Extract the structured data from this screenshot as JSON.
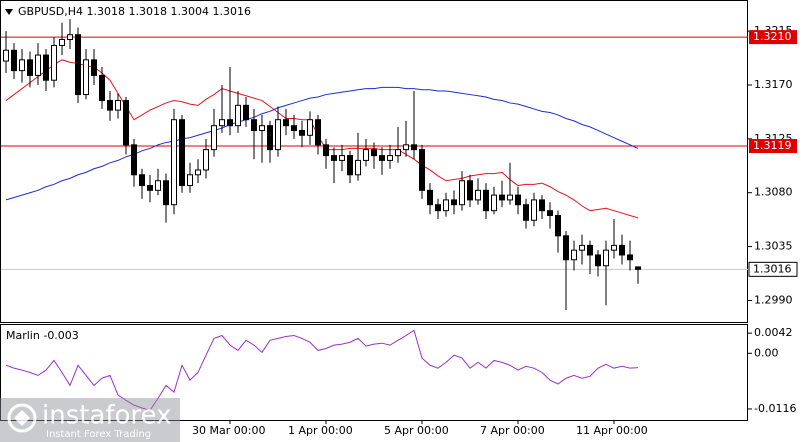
{
  "chart_data": {
    "type": "candlestick",
    "symbol": "GBPUSD,H4",
    "categories": [
      null,
      null,
      null,
      null,
      null,
      null,
      null,
      null,
      null,
      null,
      null,
      null,
      null,
      null,
      null,
      null,
      null,
      null,
      null,
      null,
      null,
      null,
      null,
      null,
      null,
      null,
      null,
      null,
      "30 Mar 00:00",
      null,
      null,
      null,
      null,
      null,
      null,
      null,
      null,
      null,
      null,
      null,
      "1 Apr 00:00",
      null,
      null,
      null,
      null,
      null,
      null,
      null,
      null,
      null,
      null,
      null,
      "5 Apr 00:00",
      null,
      null,
      null,
      null,
      null,
      null,
      null,
      null,
      null,
      null,
      null,
      "7 Apr 00:00",
      null,
      null,
      null,
      null,
      null,
      null,
      null,
      null,
      null,
      null,
      null,
      "11 Apr 00:00",
      null,
      null,
      null
    ],
    "open": [
      1.319,
      1.3199,
      1.3182,
      1.3191,
      1.3178,
      1.3195,
      1.3174,
      1.3203,
      1.3208,
      1.3212,
      1.3162,
      1.3191,
      1.3178,
      1.3157,
      1.3149,
      1.3157,
      1.312,
      1.3095,
      1.3086,
      1.3082,
      1.309,
      1.307,
      1.3141,
      1.3086,
      1.3095,
      1.3099,
      1.3116,
      1.3136,
      1.3141,
      1.3136,
      1.3153,
      1.3141,
      1.3132,
      1.3136,
      1.3116,
      1.3141,
      1.3136,
      1.3132,
      1.3128,
      1.3141,
      1.312,
      1.3111,
      1.3107,
      1.3111,
      1.3095,
      1.3107,
      1.3116,
      1.3111,
      1.3107,
      1.3111,
      1.3116,
      1.312,
      1.3116,
      1.3082,
      1.307,
      1.3065,
      1.3074,
      1.307,
      1.309,
      1.3074,
      1.3082,
      1.3065,
      1.3078,
      1.3074,
      1.3078,
      1.307,
      1.3057,
      1.3074,
      1.3065,
      1.3061,
      1.3044,
      1.3024,
      1.3032,
      1.3036,
      1.3028,
      1.3019,
      1.3032,
      1.3036,
      1.3028,
      1.3018
    ],
    "high": [
      1.3215,
      1.3205,
      1.32,
      1.3198,
      1.3205,
      1.32,
      1.321,
      1.3222,
      1.3225,
      1.3218,
      1.32,
      1.32,
      1.3185,
      1.3165,
      1.3163,
      1.316,
      1.3125,
      1.31,
      1.3095,
      1.31,
      1.3096,
      1.315,
      1.3145,
      1.3105,
      1.3108,
      1.3125,
      1.315,
      1.317,
      1.3185,
      1.3165,
      1.316,
      1.315,
      1.3145,
      1.314,
      1.3152,
      1.315,
      1.3145,
      1.314,
      1.3148,
      1.3145,
      1.3125,
      1.3118,
      1.312,
      1.3115,
      1.313,
      1.3125,
      1.3122,
      1.3118,
      1.312,
      1.3135,
      1.314,
      1.3165,
      1.312,
      1.3088,
      1.3075,
      1.308,
      1.3082,
      1.3098,
      1.3095,
      1.3092,
      1.3088,
      1.3085,
      1.309,
      1.3105,
      1.3085,
      1.3075,
      1.308,
      1.3078,
      1.3072,
      1.3065,
      1.3048,
      1.304,
      1.3045,
      1.304,
      1.3032,
      1.304,
      1.3058,
      1.3045,
      1.304,
      1.3018
    ],
    "low": [
      1.318,
      1.3175,
      1.3172,
      1.3168,
      1.317,
      1.3165,
      1.3168,
      1.3195,
      1.32,
      1.3155,
      1.3158,
      1.317,
      1.315,
      1.314,
      1.3142,
      1.3112,
      1.3085,
      1.3075,
      1.3072,
      1.3078,
      1.3055,
      1.3062,
      1.308,
      1.308,
      1.3088,
      1.3092,
      1.311,
      1.313,
      1.3128,
      1.313,
      1.3135,
      1.3108,
      1.3105,
      1.3105,
      1.311,
      1.3128,
      1.3125,
      1.3118,
      1.312,
      1.3112,
      1.31,
      1.3088,
      1.3098,
      1.3088,
      1.309,
      1.3102,
      1.31,
      1.3095,
      1.31,
      1.3105,
      1.311,
      1.3108,
      1.3075,
      1.3062,
      1.3058,
      1.306,
      1.3062,
      1.3065,
      1.3068,
      1.307,
      1.3058,
      1.3062,
      1.3068,
      1.307,
      1.3062,
      1.305,
      1.3052,
      1.3058,
      1.305,
      1.303,
      1.2982,
      1.3015,
      1.302,
      1.3012,
      1.301,
      1.2986,
      1.3025,
      1.302,
      1.3015,
      1.3004
    ],
    "close": [
      1.3199,
      1.3182,
      1.3191,
      1.3178,
      1.3195,
      1.3174,
      1.3203,
      1.3208,
      1.3212,
      1.3162,
      1.3191,
      1.3178,
      1.3157,
      1.3149,
      1.3157,
      1.312,
      1.3095,
      1.3086,
      1.3082,
      1.309,
      1.307,
      1.3141,
      1.3086,
      1.3095,
      1.3099,
      1.3116,
      1.3136,
      1.3141,
      1.3136,
      1.3153,
      1.3141,
      1.3132,
      1.3136,
      1.3116,
      1.3141,
      1.3136,
      1.3132,
      1.3128,
      1.3141,
      1.312,
      1.3111,
      1.3107,
      1.3111,
      1.3095,
      1.3107,
      1.3116,
      1.3111,
      1.3107,
      1.3111,
      1.3116,
      1.312,
      1.3116,
      1.3082,
      1.307,
      1.3065,
      1.3074,
      1.307,
      1.309,
      1.3074,
      1.3082,
      1.3065,
      1.3078,
      1.3074,
      1.3078,
      1.307,
      1.3057,
      1.3074,
      1.3065,
      1.3061,
      1.3044,
      1.3024,
      1.3032,
      1.3036,
      1.3028,
      1.3019,
      1.3032,
      1.3036,
      1.3028,
      1.3024,
      1.3016
    ],
    "candle_color": "#000000",
    "ylim": [
      1.2972,
      1.3241
    ],
    "yticks": [
      1.3215,
      {
        "value": 1.317,
        "label": "1.3170"
      },
      1.3125,
      {
        "value": 1.308,
        "label": "1.3080"
      },
      1.3035,
      {
        "value": 1.299,
        "label": "1.2990"
      }
    ],
    "hlines": [
      {
        "value": 1.321,
        "label": "1.3210",
        "color": "#e00000"
      },
      {
        "value": 1.3119,
        "label": "1.3119",
        "color": "#e00000"
      }
    ],
    "series": [
      {
        "color": "#e8141e",
        "values": [
          1.3157,
          1.3162,
          1.3167,
          1.3172,
          1.3177,
          1.3182,
          1.3187,
          1.3191,
          1.3189,
          1.3188,
          1.3186,
          1.3185,
          1.318,
          1.3174,
          1.3163,
          1.3152,
          1.3141,
          1.3145,
          1.3149,
          1.3152,
          1.3155,
          1.3157,
          1.3156,
          1.3154,
          1.3153,
          1.3158,
          1.3162,
          1.3167,
          1.3165,
          1.3163,
          1.3161,
          1.3159,
          1.3157,
          1.3152,
          1.3147,
          1.3142,
          1.3142,
          1.3141,
          1.3141,
          1.3128,
          1.3116,
          1.3116,
          1.3116,
          1.3117,
          1.3117,
          1.3117,
          1.3117,
          1.3116,
          1.3116,
          1.3116,
          1.3112,
          1.3108,
          1.3103,
          1.3099,
          1.3094,
          1.309,
          1.3091,
          1.3092,
          1.3094,
          1.3095,
          1.3096,
          1.3096,
          1.3097,
          1.3091,
          1.3086,
          1.3087,
          1.3087,
          1.3088,
          1.3085,
          1.3081,
          1.3078,
          1.3074,
          1.3069,
          1.3065,
          1.3066,
          1.3067,
          1.3065,
          1.3063,
          1.3061,
          1.3059
        ]
      },
      {
        "color": "#1a2fd6",
        "values": [
          1.3074,
          1.3076,
          1.3078,
          1.308,
          1.3082,
          1.3085,
          1.3087,
          1.309,
          1.3092,
          1.3095,
          1.3097,
          1.31,
          1.3102,
          1.3105,
          1.3107,
          1.311,
          1.3112,
          1.3115,
          1.3117,
          1.312,
          1.3122,
          1.3123,
          1.3125,
          1.3126,
          1.3128,
          1.313,
          1.3132,
          1.3134,
          1.3137,
          1.3139,
          1.3141,
          1.3143,
          1.3146,
          1.3148,
          1.3151,
          1.3153,
          1.3155,
          1.3157,
          1.3159,
          1.316,
          1.3162,
          1.3163,
          1.3164,
          1.3165,
          1.3166,
          1.3167,
          1.3167,
          1.3168,
          1.3168,
          1.3168,
          1.3167,
          1.3167,
          1.3166,
          1.3166,
          1.3165,
          1.3165,
          1.3164,
          1.3163,
          1.3162,
          1.3161,
          1.316,
          1.3158,
          1.3157,
          1.3155,
          1.3154,
          1.3152,
          1.315,
          1.3148,
          1.3147,
          1.3145,
          1.3142,
          1.314,
          1.3137,
          1.3135,
          1.3132,
          1.3129,
          1.3126,
          1.3123,
          1.312,
          1.3117
        ]
      },
      {
        "name": "Marlin",
        "axis": "y2",
        "color": "#9b30c8",
        "values": [
          -0.0025,
          -0.0031,
          -0.0035,
          -0.004,
          -0.0046,
          -0.0035,
          -0.0015,
          -0.004,
          -0.0067,
          -0.0025,
          -0.0046,
          -0.0067,
          -0.0052,
          -0.0046,
          -0.0087,
          -0.0098,
          -0.0108,
          -0.0114,
          -0.0119,
          -0.0094,
          -0.0067,
          -0.0081,
          -0.0025,
          -0.0056,
          -0.004,
          -0.0004,
          0.0031,
          0.0037,
          0.0017,
          0.0006,
          0.0027,
          0.0017,
          0.0002,
          0.0027,
          0.0031,
          0.0035,
          0.0037,
          0.0031,
          0.0023,
          0.0006,
          0.001,
          0.0017,
          0.0019,
          0.0023,
          0.0031,
          0.0015,
          0.0019,
          0.0021,
          0.0017,
          0.0027,
          0.0037,
          0.0048,
          -0.001,
          -0.0025,
          -0.0031,
          -0.0019,
          -0.0004,
          -0.001,
          -0.0031,
          -0.0019,
          -0.0031,
          -0.0015,
          -0.0019,
          -0.0025,
          -0.0035,
          -0.0027,
          -0.0031,
          -0.004,
          -0.0056,
          -0.0064,
          -0.0052,
          -0.0046,
          -0.0052,
          -0.0048,
          -0.0031,
          -0.0023,
          -0.0031,
          -0.0027,
          -0.0031,
          -0.003
        ]
      }
    ],
    "y2lim": [
      -0.0139,
      0.0061
    ],
    "y2ticks": [
      0.0042,
      {
        "value": 0,
        "label": "0.00"
      },
      -0.0116
    ],
    "watermark": {
      "brand": "instaforex",
      "tagline": "Instant Forex Trading"
    }
  }
}
